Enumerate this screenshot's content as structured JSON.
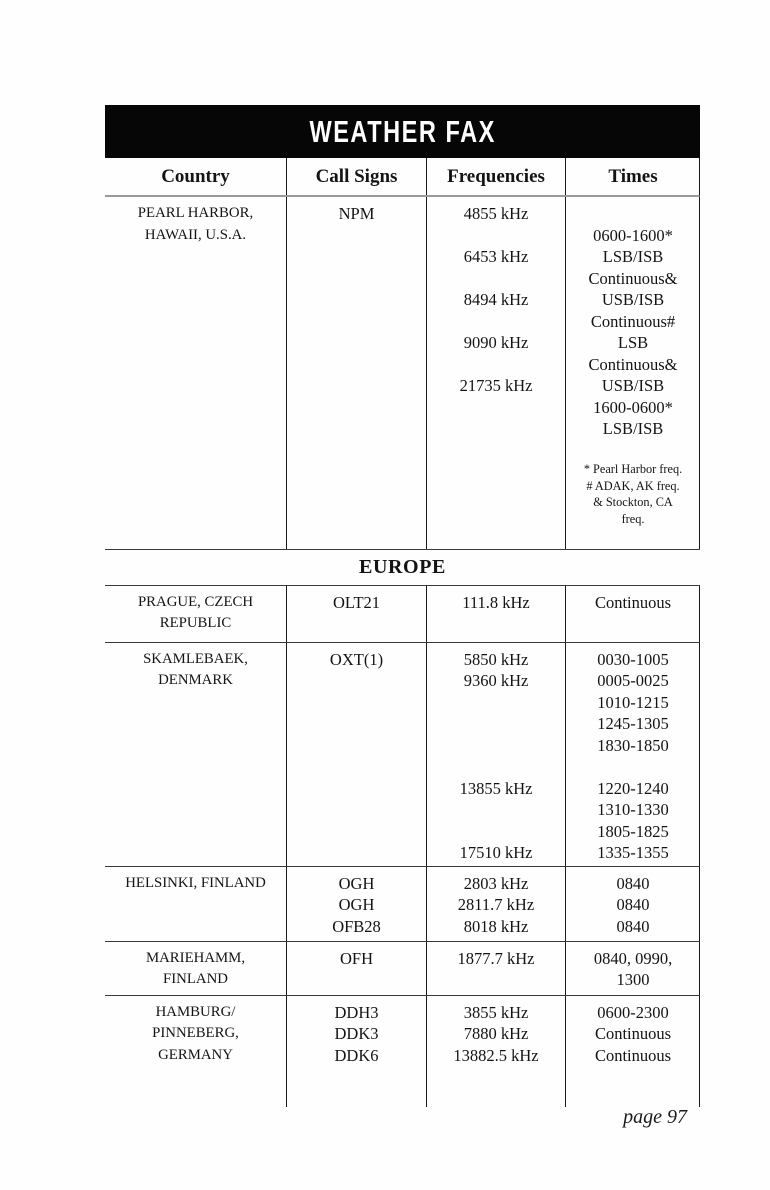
{
  "colors": {
    "banner_bg": "#060606",
    "banner_text": "#ffffff",
    "header_rule": "#9a9a9a",
    "grid_line": "#1a1a1a"
  },
  "table": {
    "title": "WEATHER FAX",
    "headers": {
      "country": "Country",
      "call_signs": "Call Signs",
      "frequencies": "Frequencies",
      "times": "Times"
    },
    "section_header": "EUROPE",
    "rows": [
      {
        "country": "PEARL HARBOR,\nHAWAII, U.S.A.",
        "call_signs": "NPM",
        "frequencies": "4855 kHz\n\n6453 kHz\n\n8494 kHz\n\n9090 kHz\n\n21735 kHz",
        "times": "0600-1600*\nLSB/ISB\nContinuous&\nUSB/ISB\nContinuous#\nLSB\nContinuous&\nUSB/ISB\n1600-0600*\nLSB/ISB",
        "footnotes": "* Pearl Harbor freq.\n# ADAK, AK freq.\n& Stockton, CA\nfreq."
      },
      {
        "country": "PRAGUE, CZECH\nREPUBLIC",
        "call_signs": "OLT21",
        "frequencies": "111.8 kHz",
        "times": "Continuous"
      },
      {
        "country": "SKAMLEBAEK,\nDENMARK",
        "call_signs": "OXT(1)",
        "frequencies": "5850 kHz\n9360 kHz\n\n\n\n\n13855 kHz\n\n\n17510 kHz",
        "times": "0030-1005\n0005-0025\n1010-1215\n1245-1305\n1830-1850\n\n1220-1240\n1310-1330\n1805-1825\n1335-1355"
      },
      {
        "country": "HELSINKI, FINLAND",
        "call_signs": "OGH\nOGH\nOFB28",
        "frequencies": "2803 kHz\n2811.7 kHz\n8018 kHz",
        "times": "0840\n0840\n0840"
      },
      {
        "country": "MARIEHAMM,\nFINLAND",
        "call_signs": "OFH",
        "frequencies": "1877.7 kHz",
        "times": "0840, 0990,\n1300"
      },
      {
        "country": "HAMBURG/\nPINNEBERG,\nGERMANY",
        "call_signs": "DDH3\nDDK3\nDDK6",
        "frequencies": "3855 kHz\n7880 kHz\n13882.5 kHz",
        "times": "0600-2300\nContinuous\nContinuous"
      }
    ]
  },
  "footer": {
    "page_number": "page 97"
  }
}
